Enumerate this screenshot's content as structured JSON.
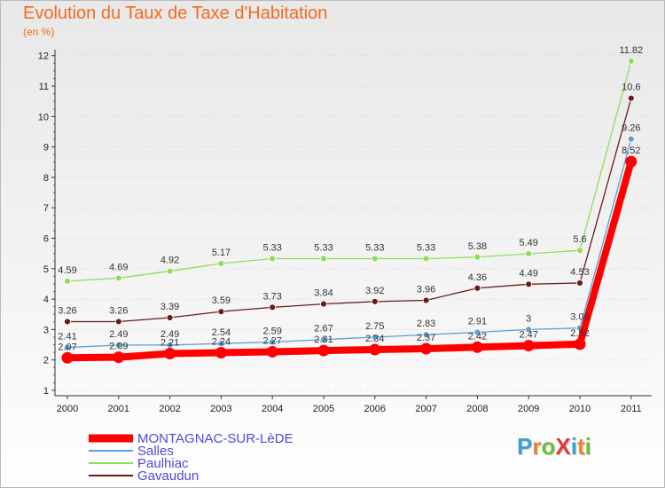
{
  "title": "Evolution du Taux de Taxe d'Habitation",
  "subtitle": "(en %)",
  "logo": {
    "text": "ProXiti",
    "colors": [
      "#3aa0d8",
      "#e8842a",
      "#6fbe3b",
      "#e23a3a",
      "#3aa0d8",
      "#e8842a",
      "#6fbe3b"
    ]
  },
  "chart_data": {
    "type": "line",
    "x": [
      "2000",
      "2001",
      "2002",
      "2003",
      "2004",
      "2005",
      "2006",
      "2007",
      "2008",
      "2009",
      "2010",
      "2011"
    ],
    "ylim": [
      1,
      12
    ],
    "yticks": [
      "1",
      "2",
      "3",
      "4",
      "5",
      "6",
      "7",
      "8",
      "9",
      "10",
      "11",
      "12"
    ],
    "grid": "horizontal dotted",
    "legend_position": "bottom-left",
    "series": [
      {
        "name": "MONTAGNAC-SUR-LèDE",
        "color": "#ff0000",
        "values": [
          2.07,
          2.09,
          2.21,
          2.24,
          2.27,
          2.31,
          2.34,
          2.37,
          2.42,
          2.47,
          2.52,
          8.52
        ],
        "labels": [
          "2.07",
          "2.09",
          "2.21",
          "2.24",
          "2.27",
          "2.31",
          "2.34",
          "2.37",
          "2.42",
          "2.47",
          "2.52",
          "8.52"
        ]
      },
      {
        "name": "Salles",
        "color": "#5b9fd4",
        "values": [
          2.41,
          2.49,
          2.49,
          2.54,
          2.59,
          2.67,
          2.75,
          2.83,
          2.91,
          3.0,
          3.05,
          9.26
        ],
        "labels": [
          "2.41",
          "2.49",
          "2.49",
          "2.54",
          "2.59",
          "2.67",
          "2.75",
          "2.83",
          "2.91",
          "3",
          "3.05",
          "9.26"
        ]
      },
      {
        "name": "Paulhiac",
        "color": "#8fdc5a",
        "values": [
          4.59,
          4.69,
          4.92,
          5.17,
          5.33,
          5.33,
          5.33,
          5.33,
          5.38,
          5.49,
          5.6,
          11.82
        ],
        "labels": [
          "4.59",
          "4.69",
          "4.92",
          "5.17",
          "5.33",
          "5.33",
          "5.33",
          "5.33",
          "5.38",
          "5.49",
          "5.6",
          "11.82"
        ]
      },
      {
        "name": "Gavaudun",
        "color": "#6b1a1a",
        "values": [
          3.26,
          3.26,
          3.39,
          3.59,
          3.73,
          3.84,
          3.92,
          3.96,
          4.36,
          4.49,
          4.53,
          10.6
        ],
        "labels": [
          "3.26",
          "3.26",
          "3.39",
          "3.59",
          "3.73",
          "3.84",
          "3.92",
          "3.96",
          "4.36",
          "4.49",
          "4.53",
          "10.6"
        ]
      }
    ]
  }
}
